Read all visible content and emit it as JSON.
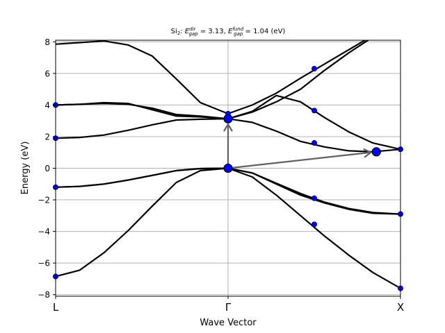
{
  "chart_data": {
    "type": "line",
    "title": {
      "prefix": "Si",
      "prefix_sub": "2",
      "sep": ":",
      "e1": "E",
      "e1_sup": "dir",
      "e1_sub": "gap",
      "e1_val": "= 3.13,",
      "e2": "E",
      "e2_sup": "fund",
      "e2_sub": "gap",
      "e2_val": "= 1.04 (eV)"
    },
    "xlabel": "Wave Vector",
    "ylabel": "Energy (eV)",
    "x_range": [
      0,
      1
    ],
    "ylim": [
      -8.1,
      8.1
    ],
    "grid": true,
    "kpoints": [
      {
        "label": "L",
        "x": 0
      },
      {
        "label": "Γ",
        "x": 0.5
      },
      {
        "label": "X",
        "x": 1
      }
    ],
    "yticks": [
      "8",
      "6",
      "4",
      "2",
      "0",
      "−2",
      "−4",
      "−6",
      "−8"
    ],
    "ytick_values": [
      8,
      6,
      4,
      2,
      0,
      -2,
      -4,
      -6,
      -8
    ],
    "series": [
      {
        "x": [
          0,
          0.07,
          0.14,
          0.21,
          0.28,
          0.35,
          0.42,
          0.5,
          0.57,
          0.64,
          0.71,
          0.78,
          0.85,
          0.92,
          1.0
        ],
        "values": [
          -6.85,
          -6.45,
          -5.35,
          -3.95,
          -2.4,
          -0.9,
          -0.15,
          0.0,
          -0.55,
          -1.7,
          -3.0,
          -4.3,
          -5.5,
          -6.6,
          -7.6
        ]
      },
      {
        "x": [
          0,
          0.07,
          0.14,
          0.21,
          0.28,
          0.35,
          0.42,
          0.5,
          0.57,
          0.64,
          0.71,
          0.78,
          0.85,
          0.92,
          1.0
        ],
        "values": [
          -1.2,
          -1.15,
          -1.0,
          -0.75,
          -0.45,
          -0.15,
          -0.02,
          0.0,
          -0.3,
          -0.95,
          -1.6,
          -2.15,
          -2.55,
          -2.8,
          -2.9
        ]
      },
      {
        "x": [
          0,
          0.07,
          0.14,
          0.21,
          0.28,
          0.35,
          0.42,
          0.5,
          0.57,
          0.64,
          0.71,
          0.78,
          0.85,
          0.92,
          1.0
        ],
        "values": [
          -1.2,
          -1.15,
          -1.0,
          -0.75,
          -0.45,
          -0.15,
          -0.02,
          0.0,
          -0.3,
          -1.0,
          -1.7,
          -2.2,
          -2.6,
          -2.85,
          -2.9
        ]
      },
      {
        "x": [
          0,
          0.07,
          0.14,
          0.21,
          0.28,
          0.35,
          0.42,
          0.5,
          0.57,
          0.64,
          0.71,
          0.78,
          0.85,
          0.92,
          1.0
        ],
        "values": [
          1.9,
          1.95,
          2.1,
          2.4,
          2.75,
          3.05,
          3.1,
          3.13,
          2.9,
          2.35,
          1.7,
          1.35,
          1.1,
          1.04,
          1.2
        ]
      },
      {
        "x": [
          0,
          0.07,
          0.14,
          0.21,
          0.28,
          0.35,
          0.42,
          0.5,
          0.57,
          0.64,
          0.71,
          0.78,
          0.85,
          0.92,
          1.0
        ],
        "values": [
          4.0,
          4.05,
          4.1,
          4.05,
          3.8,
          3.4,
          3.3,
          3.13,
          3.6,
          4.6,
          4.2,
          3.2,
          2.3,
          1.6,
          1.2
        ]
      },
      {
        "x": [
          0,
          0.07,
          0.14,
          0.21,
          0.28,
          0.35,
          0.42,
          0.5,
          0.57,
          0.64,
          0.71,
          0.78,
          0.85,
          0.92,
          1.0
        ],
        "values": [
          4.0,
          4.05,
          4.15,
          4.1,
          3.7,
          3.3,
          3.25,
          3.13,
          3.55,
          4.2,
          5.0,
          6.2,
          7.3,
          8.3,
          9.3
        ]
      },
      {
        "x": [
          0,
          0.07,
          0.14,
          0.21,
          0.28,
          0.35,
          0.42,
          0.5,
          0.57,
          0.64,
          0.71,
          0.78,
          0.85,
          0.92,
          1.0
        ],
        "values": [
          7.85,
          7.95,
          8.05,
          7.8,
          7.1,
          5.65,
          4.15,
          3.45,
          4.0,
          4.75,
          5.7,
          6.6,
          7.5,
          8.4,
          9.3
        ]
      }
    ],
    "small_markers": [
      {
        "x": 0,
        "y": -6.85
      },
      {
        "x": 0,
        "y": -1.2
      },
      {
        "x": 0,
        "y": 1.9
      },
      {
        "x": 0,
        "y": 4.0
      },
      {
        "x": 0.5,
        "y": 3.45
      },
      {
        "x": 0.75,
        "y": 6.3
      },
      {
        "x": 0.75,
        "y": 3.65
      },
      {
        "x": 0.75,
        "y": 1.6
      },
      {
        "x": 0.75,
        "y": -1.9
      },
      {
        "x": 0.75,
        "y": -3.55
      },
      {
        "x": 1.0,
        "y": 1.2
      },
      {
        "x": 1.0,
        "y": -2.9
      },
      {
        "x": 1.0,
        "y": -7.6
      }
    ],
    "big_markers": [
      {
        "x": 0.5,
        "y": 0.0
      },
      {
        "x": 0.5,
        "y": 3.13
      },
      {
        "x": 0.93,
        "y": 1.04
      }
    ],
    "arrows": [
      {
        "from": [
          0.5,
          0.0
        ],
        "to": [
          0.5,
          3.13
        ],
        "kind": "direct"
      },
      {
        "from": [
          0.5,
          0.0
        ],
        "to": [
          0.93,
          1.04
        ],
        "kind": "fundamental"
      }
    ],
    "colors": {
      "marker_fill": "#0000ff",
      "marker_edge": "#000080",
      "band": "#000000",
      "arrow": "#606060",
      "grid": "#b0b0b0"
    }
  }
}
